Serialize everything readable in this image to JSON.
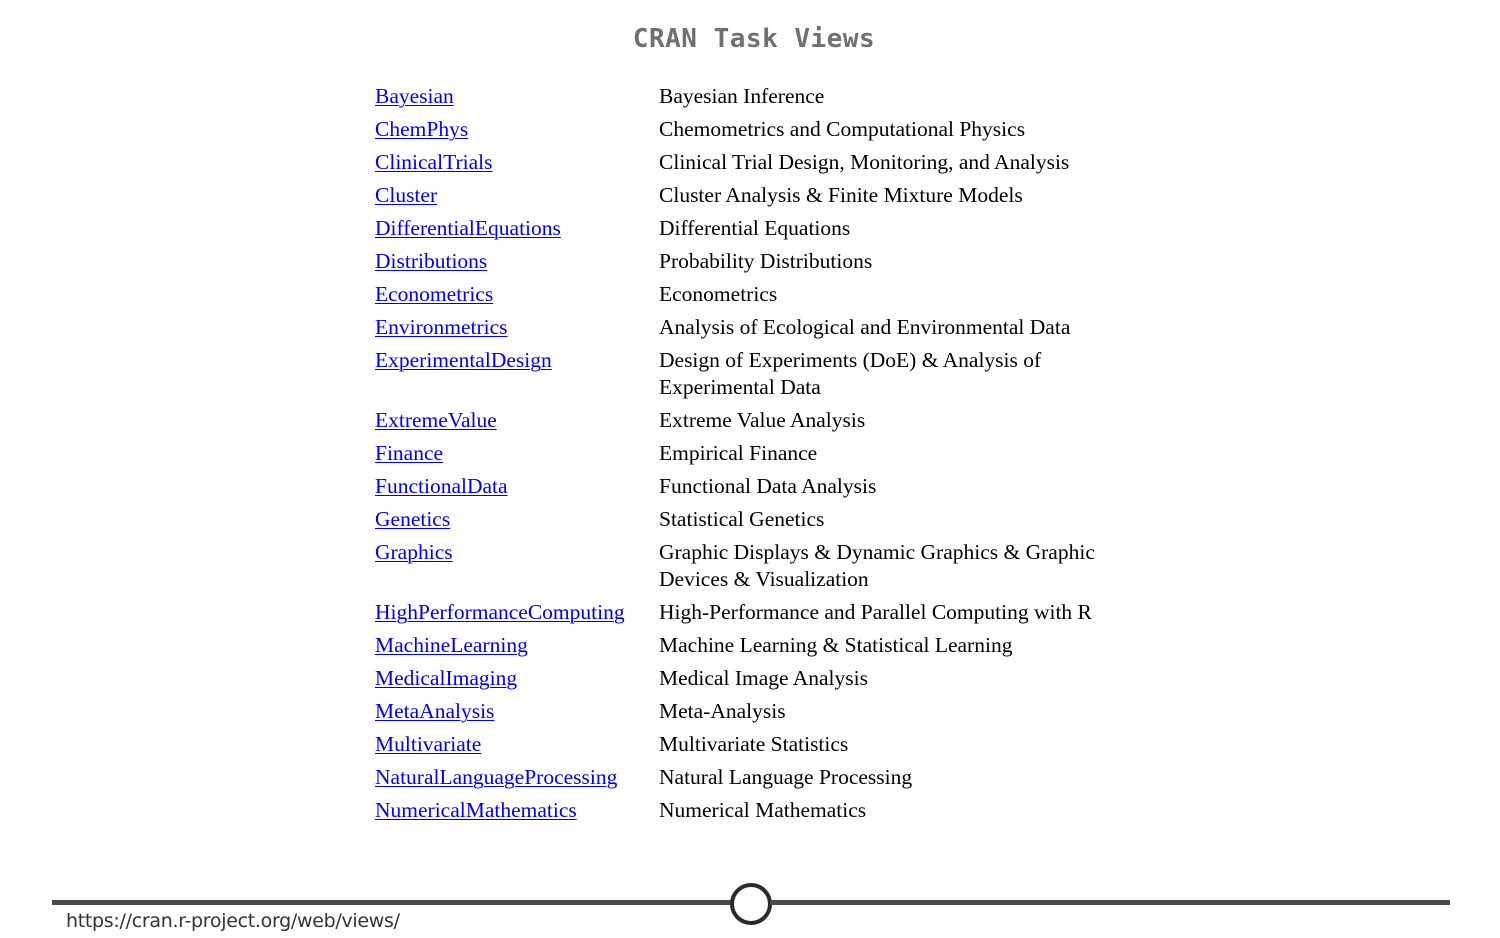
{
  "page": {
    "title": "CRAN Task Views"
  },
  "views": [
    {
      "name": "Bayesian",
      "description": "Bayesian Inference"
    },
    {
      "name": "ChemPhys",
      "description": "Chemometrics and Computational Physics"
    },
    {
      "name": "ClinicalTrials",
      "description": "Clinical Trial Design, Monitoring, and Analysis"
    },
    {
      "name": "Cluster",
      "description": "Cluster Analysis & Finite Mixture Models"
    },
    {
      "name": "DifferentialEquations",
      "description": "Differential Equations"
    },
    {
      "name": "Distributions",
      "description": "Probability Distributions"
    },
    {
      "name": "Econometrics",
      "description": "Econometrics"
    },
    {
      "name": "Environmetrics",
      "description": "Analysis of Ecological and Environmental Data"
    },
    {
      "name": "ExperimentalDesign",
      "description": "Design of Experiments (DoE) & Analysis of Experimental Data"
    },
    {
      "name": "ExtremeValue",
      "description": "Extreme Value Analysis"
    },
    {
      "name": "Finance",
      "description": "Empirical Finance"
    },
    {
      "name": "FunctionalData",
      "description": "Functional Data Analysis"
    },
    {
      "name": "Genetics",
      "description": "Statistical Genetics"
    },
    {
      "name": "Graphics",
      "description": "Graphic Displays & Dynamic Graphics & Graphic Devices & Visualization"
    },
    {
      "name": "HighPerformanceComputing",
      "description": "High-Performance and Parallel Computing with R"
    },
    {
      "name": "MachineLearning",
      "description": "Machine Learning & Statistical Learning"
    },
    {
      "name": "MedicalImaging",
      "description": "Medical Image Analysis"
    },
    {
      "name": "MetaAnalysis",
      "description": "Meta-Analysis"
    },
    {
      "name": "Multivariate",
      "description": "Multivariate Statistics"
    },
    {
      "name": "NaturalLanguageProcessing",
      "description": "Natural Language Processing"
    },
    {
      "name": "NumericalMathematics",
      "description": "Numerical Mathematics"
    }
  ],
  "footer": {
    "url": "https://cran.r-project.org/web/views/"
  },
  "colors": {
    "link": "#0000ee",
    "title": "#707070",
    "footer_line": "#4a4a4a"
  }
}
